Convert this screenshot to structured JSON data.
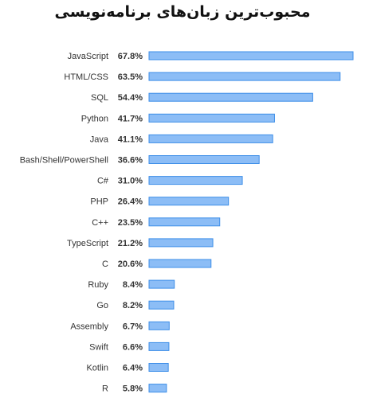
{
  "chart_data": {
    "type": "bar",
    "orientation": "horizontal",
    "title": "محبوب‌ترین زبان‌های برنامه‌نویسی",
    "categories": [
      "JavaScript",
      "HTML/CSS",
      "SQL",
      "Python",
      "Java",
      "Bash/Shell/PowerShell",
      "C#",
      "PHP",
      "C++",
      "TypeScript",
      "C",
      "Ruby",
      "Go",
      "Assembly",
      "Swift",
      "Kotlin",
      "R"
    ],
    "values": [
      67.8,
      63.5,
      54.4,
      41.7,
      41.1,
      36.6,
      31.0,
      26.4,
      23.5,
      21.2,
      20.6,
      8.4,
      8.2,
      6.7,
      6.6,
      6.4,
      5.8
    ],
    "value_labels": [
      "67.8%",
      "63.5%",
      "54.4%",
      "41.7%",
      "41.1%",
      "36.6%",
      "31.0%",
      "26.4%",
      "23.5%",
      "21.2%",
      "20.6%",
      "8.4%",
      "8.2%",
      "6.7%",
      "6.6%",
      "6.4%",
      "5.8%"
    ],
    "xlim": [
      0,
      67.8
    ],
    "grid": false,
    "colors": {
      "bar_fill": "#8cbdf6",
      "bar_stroke": "#3d8ee8"
    }
  }
}
